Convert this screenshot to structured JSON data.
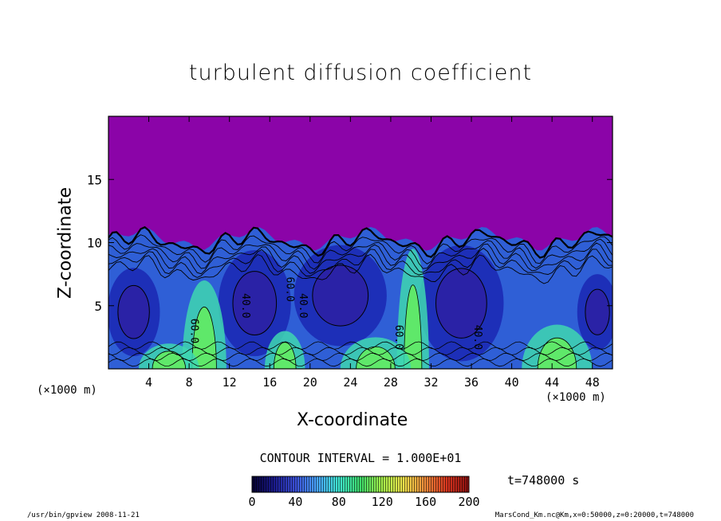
{
  "chart_data": {
    "type": "heatmap",
    "title": "turbulent diffusion coefficient",
    "xlabel": "X-coordinate",
    "ylabel": "Z-coordinate",
    "x_unit": "(×1000 m)",
    "z_unit": "(×1000 m)",
    "xlim": [
      0,
      50
    ],
    "ylim": [
      0,
      20
    ],
    "x_ticks": [
      4,
      8,
      12,
      16,
      20,
      24,
      28,
      32,
      36,
      40,
      44,
      48
    ],
    "y_ticks": [
      5,
      10,
      15
    ],
    "contour_labels": [
      {
        "text": "40.0",
        "x": 13.3,
        "z": 5.0
      },
      {
        "text": "60.0",
        "x": 17.7,
        "z": 6.3
      },
      {
        "text": "40.0",
        "x": 19.0,
        "z": 5.0
      },
      {
        "text": "60.0",
        "x": 8.2,
        "z": 3.0
      },
      {
        "text": "60.0",
        "x": 28.5,
        "z": 2.5
      },
      {
        "text": "40.0",
        "x": 36.3,
        "z": 2.5
      }
    ],
    "colorbar": {
      "min": 0,
      "max": 200,
      "ticks": [
        0,
        40,
        80,
        120,
        160,
        200
      ],
      "colors": [
        "#050030",
        "#1a1a8c",
        "#3b4fd8",
        "#49a6ff",
        "#3fe6d0",
        "#3ddc6a",
        "#a6f04a",
        "#f0e14a",
        "#f08a3a",
        "#d8341e",
        "#8a0f0f"
      ]
    },
    "background_color": "#8b04a8",
    "contour_interval": "CONTOUR INTERVAL = 1.000E+01",
    "time_label": "t=748000 s"
  },
  "footer": {
    "left": "/usr/bin/gpview   2008-11-21",
    "right": "MarsCond_Km.nc@Km,x=0:50000,z=0:20000,t=748000"
  }
}
